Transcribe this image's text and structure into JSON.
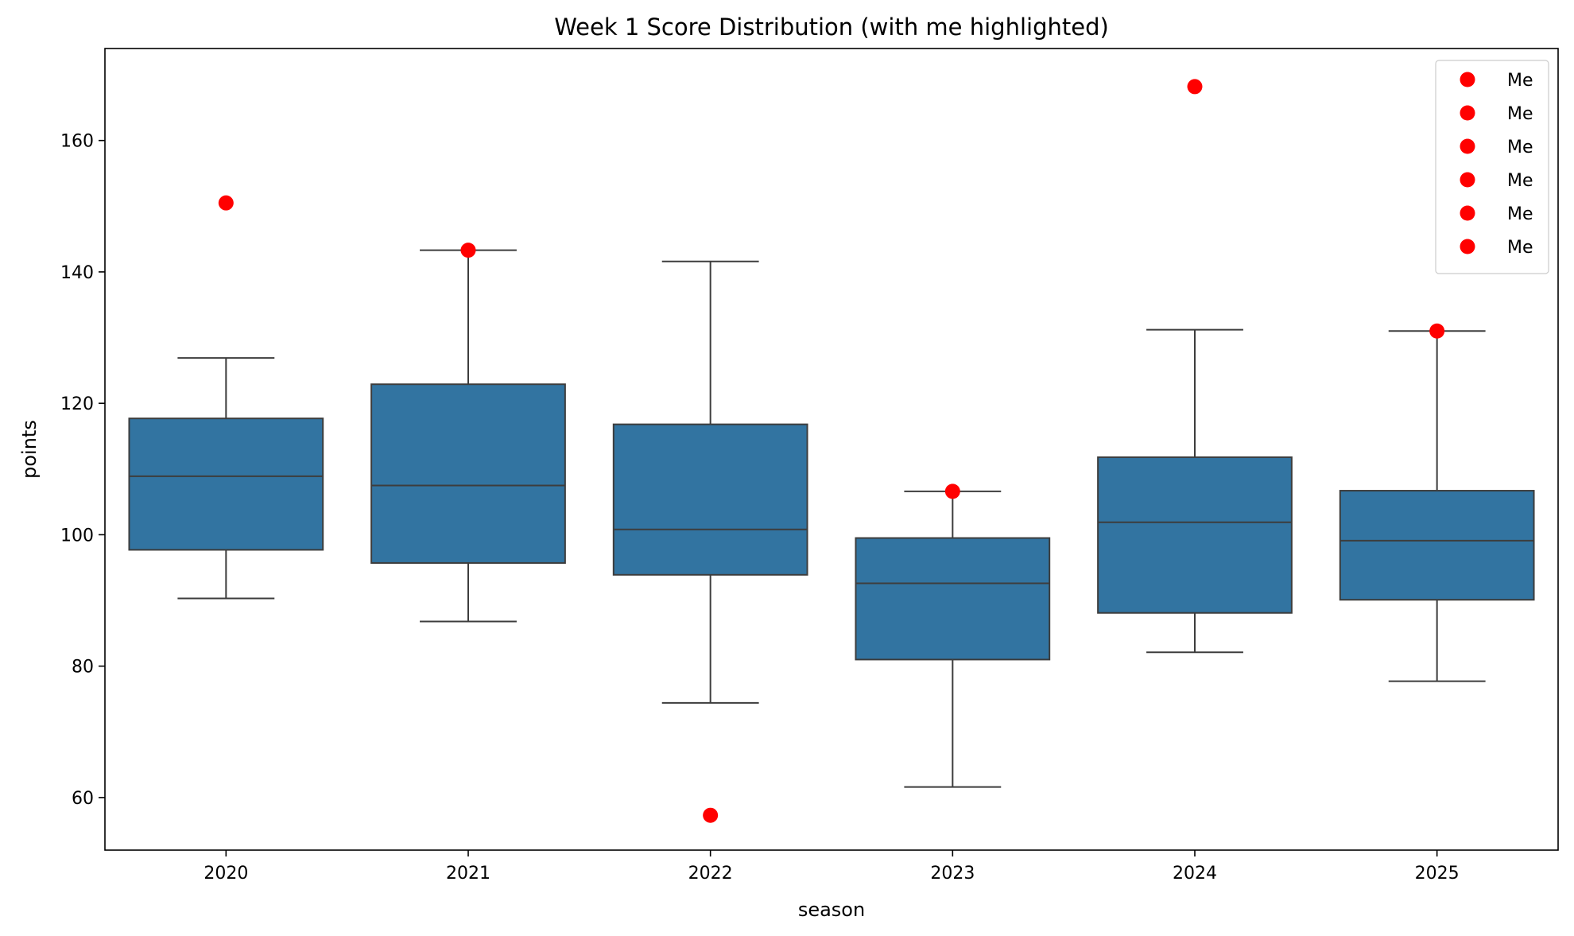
{
  "chart_data": {
    "type": "box",
    "title": "Week 1 Score Distribution (with me highlighted)",
    "xlabel": "season",
    "ylabel": "points",
    "ylim": [
      52,
      174
    ],
    "yticks": [
      60,
      80,
      100,
      120,
      140,
      160
    ],
    "categories": [
      "2020",
      "2021",
      "2022",
      "2023",
      "2024",
      "2025"
    ],
    "boxes": [
      {
        "whisker_low": 90.3,
        "q1": 97.7,
        "median": 108.9,
        "q3": 117.7,
        "whisker_high": 126.9
      },
      {
        "whisker_low": 86.8,
        "q1": 95.7,
        "median": 107.5,
        "q3": 122.9,
        "whisker_high": 143.3
      },
      {
        "whisker_low": 74.4,
        "q1": 93.9,
        "median": 100.8,
        "q3": 116.8,
        "whisker_high": 141.6
      },
      {
        "whisker_low": 61.6,
        "q1": 81.0,
        "median": 92.6,
        "q3": 99.5,
        "whisker_high": 106.6
      },
      {
        "whisker_low": 82.1,
        "q1": 88.1,
        "median": 101.9,
        "q3": 111.8,
        "whisker_high": 131.2
      },
      {
        "whisker_low": 77.7,
        "q1": 90.1,
        "median": 99.1,
        "q3": 106.7,
        "whisker_high": 131.0
      }
    ],
    "me_points": [
      150.5,
      143.3,
      57.3,
      106.6,
      168.2,
      131.0
    ],
    "legend": {
      "entries": [
        "Me",
        "Me",
        "Me",
        "Me",
        "Me",
        "Me"
      ],
      "placement": "top-right"
    },
    "colors": {
      "box": "#3274a1",
      "edge": "#3d3d3d",
      "me": "#ff0000"
    },
    "grid": false
  }
}
